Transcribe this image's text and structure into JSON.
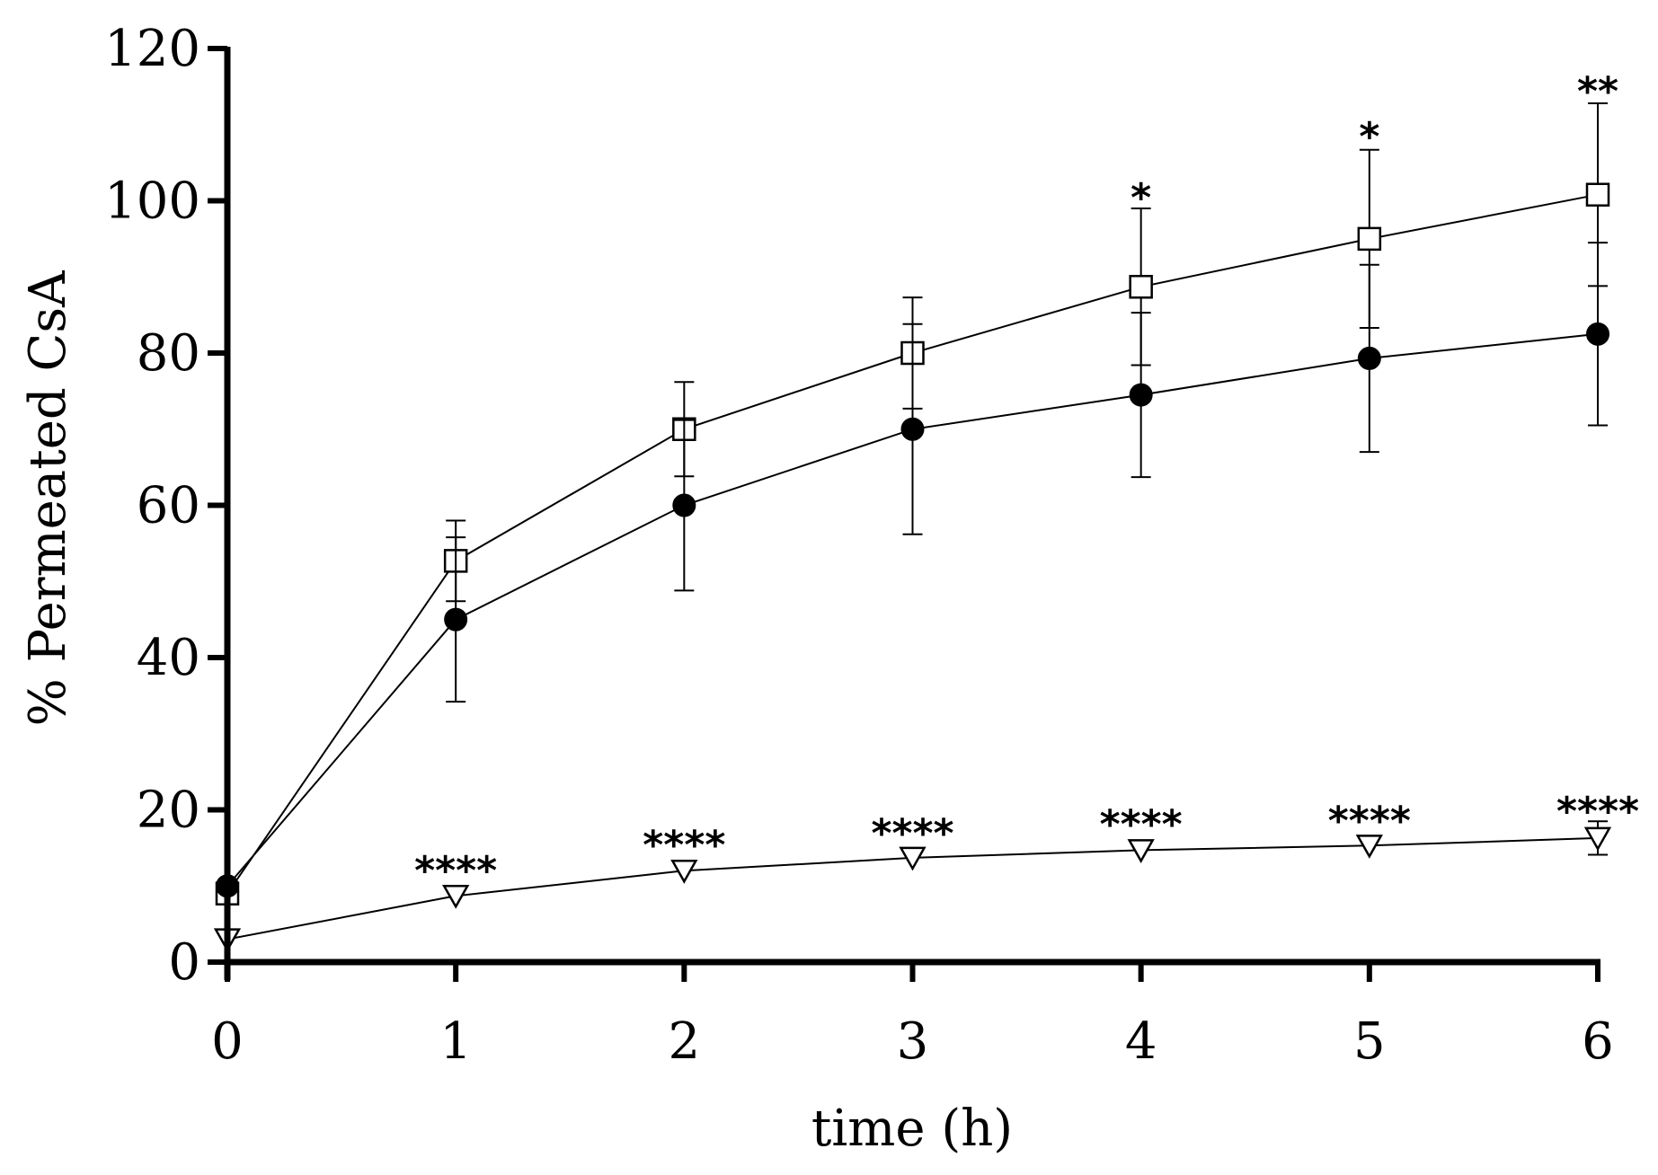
{
  "chart_data": {
    "type": "line",
    "title": "",
    "xlabel": "time (h)",
    "ylabel": "% Permeated CsA",
    "xlim": [
      0,
      6
    ],
    "ylim": [
      0,
      120
    ],
    "x_ticks": [
      0,
      1,
      2,
      3,
      4,
      5,
      6
    ],
    "y_ticks": [
      0,
      20,
      40,
      60,
      80,
      100,
      120
    ],
    "grid": false,
    "legend": "none",
    "series": [
      {
        "name": "open-square",
        "marker": "square-open",
        "x": [
          0,
          1,
          2,
          3,
          4,
          5,
          6
        ],
        "values": [
          9,
          52.7,
          70,
          80,
          88.7,
          95,
          100.8
        ],
        "error": [
          0,
          5.3,
          6.2,
          7.3,
          10.3,
          11.7,
          12
        ]
      },
      {
        "name": "filled-circle",
        "marker": "circle-filled",
        "x": [
          0,
          1,
          2,
          3,
          4,
          5,
          6
        ],
        "values": [
          10,
          45,
          60,
          70,
          74.5,
          79.3,
          82.5
        ],
        "error": [
          0,
          10.8,
          11.2,
          13.8,
          10.8,
          12.3,
          12
        ]
      },
      {
        "name": "open-triangle",
        "marker": "triangle-down-open",
        "x": [
          0,
          1,
          2,
          3,
          4,
          5,
          6
        ],
        "values": [
          3,
          8.7,
          12,
          13.7,
          14.7,
          15.3,
          16.3
        ],
        "error": [
          0,
          0,
          0,
          0,
          0,
          0,
          2.2
        ]
      }
    ],
    "annotations": [
      {
        "x": 4,
        "text": "*",
        "y": 101
      },
      {
        "x": 5,
        "text": "*",
        "y": 109
      },
      {
        "x": 6,
        "text": "**",
        "y": 115
      },
      {
        "x": 1,
        "text": "****",
        "y": 12.6
      },
      {
        "x": 2,
        "text": "****",
        "y": 16
      },
      {
        "x": 3,
        "text": "****",
        "y": 17.5
      },
      {
        "x": 4,
        "text": "****",
        "y": 18.7
      },
      {
        "x": 5,
        "text": "****",
        "y": 19.2
      },
      {
        "x": 6,
        "text": "****",
        "y": 20.4
      }
    ]
  }
}
